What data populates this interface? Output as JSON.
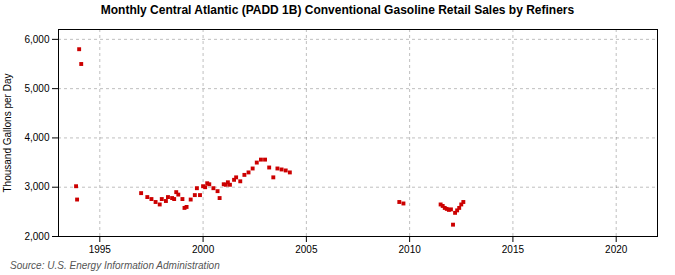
{
  "chart_data": {
    "type": "scatter",
    "title": "Monthly Central Atlantic (PADD 1B) Conventional Gasoline Retail Sales by Refiners",
    "ylabel": "Thousand Gallons per Day",
    "source": "Source: U.S. Energy Information Administration",
    "color": "#cc0000",
    "marker": "square",
    "grid": true,
    "xlim": [
      1993.0,
      2022.0
    ],
    "ylim": [
      2000,
      6200
    ],
    "xticks": [
      1995,
      2000,
      2005,
      2010,
      2015,
      2020
    ],
    "yticks": [
      {
        "value": 2000,
        "label": "2,000"
      },
      {
        "value": 3000,
        "label": "3,000"
      },
      {
        "value": 4000,
        "label": "4,000"
      },
      {
        "value": 5000,
        "label": "5,000"
      },
      {
        "value": 6000,
        "label": "6,000"
      }
    ],
    "x": [
      1993.9,
      1994.0,
      1994.1,
      1993.85,
      1997.0,
      1997.3,
      1997.5,
      1997.7,
      1997.9,
      1998.0,
      1998.2,
      1998.3,
      1998.5,
      1998.6,
      1998.7,
      1998.8,
      1999.0,
      1999.1,
      1999.2,
      1999.4,
      1999.6,
      1999.7,
      1999.85,
      2000.0,
      2000.1,
      2000.2,
      2000.3,
      2000.5,
      2000.7,
      2000.8,
      2001.0,
      2001.1,
      2001.2,
      2001.3,
      2001.5,
      2001.6,
      2001.8,
      2002.0,
      2002.2,
      2002.4,
      2002.6,
      2002.8,
      2003.0,
      2003.2,
      2003.4,
      2003.6,
      2003.8,
      2004.0,
      2004.2,
      2009.5,
      2009.7,
      2011.5,
      2011.6,
      2011.7,
      2011.8,
      2011.9,
      2012.0,
      2012.1,
      2012.2,
      2012.3,
      2012.4,
      2012.5,
      2012.6
    ],
    "values": [
      2750,
      5800,
      5500,
      3020,
      2880,
      2800,
      2760,
      2700,
      2650,
      2760,
      2720,
      2800,
      2780,
      2760,
      2900,
      2850,
      2760,
      2580,
      2600,
      2750,
      2840,
      2980,
      2840,
      3020,
      3000,
      3080,
      3060,
      2980,
      2920,
      2780,
      3060,
      3050,
      3100,
      3050,
      3150,
      3200,
      3120,
      3250,
      3300,
      3380,
      3500,
      3560,
      3560,
      3400,
      3200,
      3380,
      3360,
      3340,
      3300,
      2700,
      2670,
      2650,
      2620,
      2580,
      2560,
      2540,
      2550,
      2240,
      2480,
      2530,
      2580,
      2650,
      2700
    ]
  }
}
